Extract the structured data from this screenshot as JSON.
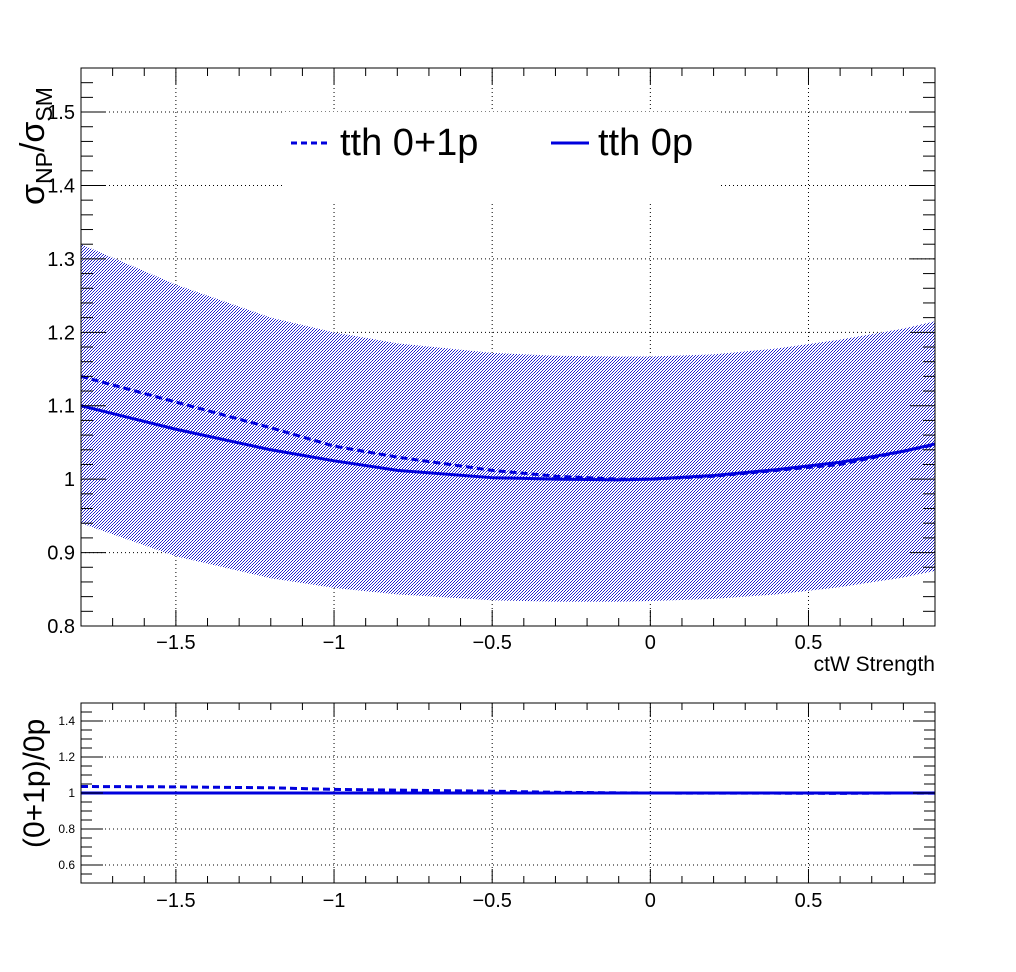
{
  "chart_data": [
    {
      "type": "line",
      "xlabel": "ctW Strength",
      "ylabel": "σ_NP/σ_SM",
      "ylabel_main": "σ",
      "ylabel_sub1": "NP",
      "ylabel_slash": "/σ",
      "ylabel_sub2": "SM",
      "xlim": [
        -1.8,
        0.9
      ],
      "ylim": [
        0.8,
        1.56
      ],
      "grid": true,
      "legend_position": "top-center",
      "x_ticks": [
        -1.5,
        -1,
        -0.5,
        0,
        0.5
      ],
      "x_tick_labels": [
        "−1.5",
        "−1",
        "−0.5",
        "0",
        "0.5"
      ],
      "y_ticks": [
        0.8,
        0.9,
        1,
        1.1,
        1.2,
        1.3,
        1.4,
        1.5
      ],
      "y_tick_labels": [
        "0.8",
        "0.9",
        "1",
        "1.1",
        "1.2",
        "1.3",
        "1.4",
        "1.5"
      ],
      "x": [
        -1.8,
        -1.5,
        -1.2,
        -1.0,
        -0.8,
        -0.5,
        -0.3,
        -0.1,
        0.0,
        0.2,
        0.4,
        0.6,
        0.8,
        0.9
      ],
      "series": [
        {
          "name": "tth 0+1p",
          "style": "dashed",
          "color": "#0000dd",
          "values": [
            1.14,
            1.105,
            1.07,
            1.045,
            1.03,
            1.012,
            1.004,
            1.0,
            1.0,
            1.004,
            1.012,
            1.02,
            1.038,
            1.047
          ]
        },
        {
          "name": "tth 0p",
          "style": "solid",
          "color": "#0000dd",
          "values": [
            1.1,
            1.068,
            1.04,
            1.025,
            1.012,
            1.002,
            1.0,
            0.999,
            1.0,
            1.005,
            1.013,
            1.023,
            1.038,
            1.048
          ]
        }
      ],
      "band": {
        "color": "#0000aa",
        "upper": [
          1.32,
          1.265,
          1.22,
          1.2,
          1.185,
          1.172,
          1.168,
          1.167,
          1.167,
          1.17,
          1.178,
          1.19,
          1.205,
          1.215
        ],
        "lower": [
          0.94,
          0.895,
          0.865,
          0.852,
          0.843,
          0.835,
          0.833,
          0.833,
          0.834,
          0.837,
          0.843,
          0.853,
          0.866,
          0.875
        ]
      }
    },
    {
      "type": "line",
      "xlabel": "",
      "ylabel": "(0+1p)/0p",
      "xlim": [
        -1.8,
        0.9
      ],
      "ylim": [
        0.5,
        1.5
      ],
      "grid": true,
      "x_ticks": [
        -1.5,
        -1,
        -0.5,
        0,
        0.5
      ],
      "x_tick_labels": [
        "−1.5",
        "−1",
        "−0.5",
        "0",
        "0.5"
      ],
      "y_ticks": [
        0.6,
        0.8,
        1,
        1.2,
        1.4
      ],
      "y_tick_labels": [
        "0.6",
        "0.8",
        "1",
        "1.2",
        "1.4"
      ],
      "x": [
        -1.8,
        -1.5,
        -1.2,
        -1.0,
        -0.8,
        -0.5,
        -0.3,
        -0.1,
        0.0,
        0.2,
        0.4,
        0.6,
        0.8,
        0.9
      ],
      "series": [
        {
          "style": "dashed",
          "color": "#0000dd",
          "values": [
            1.036,
            1.034,
            1.029,
            1.02,
            1.016,
            1.01,
            1.004,
            1.001,
            1.0,
            0.999,
            0.999,
            0.998,
            1.0,
            0.999
          ]
        },
        {
          "style": "solid",
          "color": "#0000dd",
          "values": [
            1.0,
            1.0,
            1.0,
            1.0,
            1.0,
            1.0,
            1.0,
            1.0,
            1.0,
            1.0,
            1.0,
            1.0,
            1.0,
            1.0
          ]
        }
      ]
    }
  ]
}
